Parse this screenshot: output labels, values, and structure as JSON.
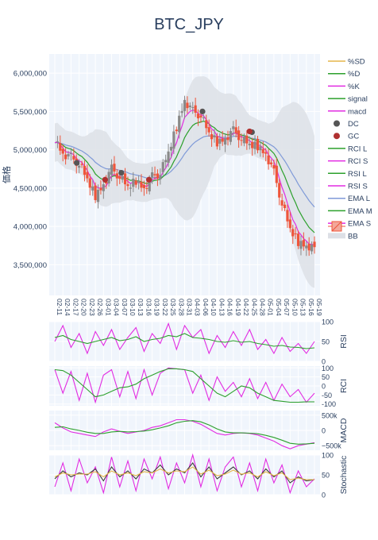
{
  "title": "BTC_JPY",
  "colors": {
    "plot_bg": "#f0f5fc",
    "grid": "#ffffff",
    "candle_up": "#8a8a8a",
    "candle_down": "#ef553b",
    "bb_fill": "#dde0e6",
    "ema_s": "#e22ce2",
    "ema_m": "#2ca02c",
    "ema_l": "#7f9ad8",
    "dc": "#555555",
    "gc": "#b03030"
  },
  "chart_data": [
    {
      "type": "candlestick",
      "ylabel": "価格",
      "ylim": [
        3100000,
        6250000
      ],
      "yticks": [
        3500000,
        4000000,
        4500000,
        5000000,
        5500000,
        6000000
      ],
      "ytick_labels": [
        "3,500,000",
        "4,000,000",
        "4,500,000",
        "5,000,000",
        "5,500,000",
        "6,000,000"
      ],
      "x_labels": [
        "02-11",
        "02-14",
        "02-17",
        "02-20",
        "02-23",
        "02-26",
        "03-01",
        "03-04",
        "03-07",
        "03-10",
        "03-13",
        "03-16",
        "03-19",
        "03-22",
        "03-25",
        "03-28",
        "03-31",
        "04-03",
        "04-06",
        "04-10",
        "04-13",
        "04-16",
        "04-19",
        "04-22",
        "04-25",
        "04-28",
        "05-01",
        "05-04",
        "05-07",
        "05-10",
        "05-13",
        "05-16",
        "05-19"
      ],
      "close_anchors": [
        5150000,
        4950000,
        4900000,
        4820000,
        4600000,
        4400000,
        4550000,
        4750000,
        4650000,
        4500000,
        4600000,
        4500000,
        4650000,
        4700000,
        4950000,
        5300000,
        5650000,
        5500000,
        5450000,
        5200000,
        5100000,
        5150000,
        5250000,
        5150000,
        5050000,
        5050000,
        4950000,
        4700000,
        4300000,
        3950000,
        3800000,
        3750000,
        3730000
      ],
      "legend": [
        "%SD",
        "%D",
        "%K",
        "signal",
        "macd",
        "DC",
        "GC",
        "RCI L",
        "RCI S",
        "RSI L",
        "RSI S",
        "EMA L",
        "EMA M",
        "EMA S",
        "BB"
      ],
      "dc_points": [
        {
          "x": 2.7,
          "y": 4830000
        },
        {
          "x": 8.2,
          "y": 4700000
        },
        {
          "x": 18.2,
          "y": 5500000
        },
        {
          "x": 24.3,
          "y": 5230000
        }
      ],
      "gc_points": [
        {
          "x": 6.2,
          "y": 4610000
        },
        {
          "x": 11.6,
          "y": 4610000
        },
        {
          "x": 24.0,
          "y": 5240000
        }
      ]
    },
    {
      "type": "line",
      "ylabel": "RSI",
      "ylim": [
        0,
        100
      ],
      "yticks": [
        0,
        50,
        100
      ],
      "series": [
        {
          "name": "RSI S",
          "anchors": [
            50,
            90,
            35,
            70,
            20,
            75,
            40,
            80,
            30,
            60,
            85,
            25,
            70,
            45,
            95,
            30,
            90,
            60,
            80,
            20,
            65,
            35,
            75,
            40,
            80,
            30,
            55,
            20,
            60,
            25,
            45,
            20,
            50
          ]
        },
        {
          "name": "RSI L",
          "anchors": [
            60,
            65,
            55,
            50,
            45,
            50,
            55,
            60,
            52,
            55,
            62,
            50,
            55,
            58,
            65,
            62,
            70,
            60,
            58,
            55,
            50,
            48,
            52,
            48,
            50,
            45,
            42,
            38,
            40,
            36,
            35,
            32,
            34
          ]
        }
      ]
    },
    {
      "type": "line",
      "ylabel": "RCI",
      "ylim": [
        -110,
        110
      ],
      "yticks": [
        -100,
        -50,
        0,
        50,
        100
      ],
      "series": [
        {
          "name": "RCI S",
          "anchors": [
            90,
            -40,
            80,
            -80,
            70,
            -90,
            60,
            90,
            -60,
            80,
            -70,
            90,
            -50,
            70,
            100,
            95,
            90,
            -40,
            60,
            -80,
            50,
            -30,
            20,
            -60,
            40,
            -70,
            20,
            -80,
            10,
            -60,
            -20,
            -90,
            -40
          ]
        },
        {
          "name": "RCI L",
          "anchors": [
            90,
            85,
            60,
            20,
            -20,
            -60,
            -50,
            -30,
            -10,
            -5,
            10,
            40,
            60,
            80,
            95,
            95,
            90,
            80,
            40,
            0,
            -40,
            -60,
            -30,
            0,
            -10,
            -40,
            -60,
            -80,
            -85,
            -90,
            -90,
            -88,
            -88
          ]
        }
      ]
    },
    {
      "type": "line",
      "ylabel": "MACD",
      "ylim": [
        -650000,
        650000
      ],
      "yticks": [
        -500000,
        0,
        500000
      ],
      "ytick_labels": [
        "−500k",
        "0",
        "500k"
      ],
      "series": [
        {
          "name": "macd",
          "anchors": [
            250000,
            80000,
            -50000,
            -100000,
            -150000,
            -200000,
            -50000,
            50000,
            -30000,
            -100000,
            -50000,
            0,
            100000,
            150000,
            250000,
            350000,
            350000,
            300000,
            200000,
            50000,
            -100000,
            -150000,
            -100000,
            -80000,
            -100000,
            -150000,
            -250000,
            -350000,
            -500000,
            -600000,
            -500000,
            -450000,
            -400000
          ]
        },
        {
          "name": "signal",
          "anchors": [
            100000,
            120000,
            50000,
            0,
            -60000,
            -100000,
            -100000,
            -50000,
            -30000,
            -50000,
            -40000,
            -20000,
            20000,
            80000,
            150000,
            250000,
            300000,
            320000,
            280000,
            180000,
            50000,
            -50000,
            -80000,
            -80000,
            -90000,
            -110000,
            -160000,
            -230000,
            -320000,
            -420000,
            -450000,
            -440000,
            -420000
          ]
        }
      ]
    },
    {
      "type": "line",
      "ylabel": "Stochastic",
      "ylim": [
        0,
        100
      ],
      "yticks": [
        0,
        50,
        100
      ],
      "series": [
        {
          "name": "%K",
          "anchors": [
            20,
            80,
            10,
            90,
            30,
            70,
            5,
            95,
            20,
            85,
            10,
            90,
            40,
            95,
            15,
            80,
            30,
            100,
            20,
            90,
            10,
            70,
            95,
            20,
            80,
            10,
            90,
            30,
            75,
            5,
            60,
            20,
            40
          ]
        },
        {
          "name": "%D",
          "anchors": [
            40,
            60,
            45,
            55,
            50,
            65,
            35,
            70,
            45,
            60,
            40,
            65,
            55,
            75,
            50,
            65,
            55,
            80,
            45,
            70,
            40,
            55,
            70,
            50,
            60,
            40,
            65,
            45,
            60,
            30,
            45,
            35,
            38
          ]
        },
        {
          "name": "%SD",
          "anchors": [
            45,
            55,
            50,
            52,
            52,
            58,
            45,
            60,
            50,
            55,
            48,
            58,
            55,
            65,
            55,
            60,
            58,
            70,
            52,
            62,
            48,
            52,
            62,
            52,
            55,
            45,
            58,
            48,
            55,
            38,
            42,
            38,
            38
          ]
        }
      ]
    }
  ]
}
